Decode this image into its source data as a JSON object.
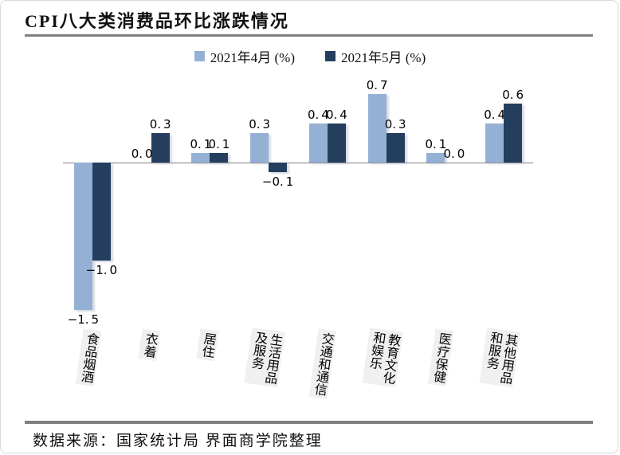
{
  "card": {
    "title": "CPI八大类消费品环比涨跌情况",
    "source_note": "数据来源：国家统计局 界面商学院整理"
  },
  "legend": [
    {
      "label": "2021年4月 (%)",
      "color": "#94B1D5"
    },
    {
      "label": "2021年5月 (%)",
      "color": "#243F5E"
    }
  ],
  "colors": {
    "series_april": "#94B1D5",
    "series_may": "#243F5E",
    "rule_gray": "#808080",
    "category_label_bg": "#F0F0F0"
  },
  "chart_data": {
    "type": "bar",
    "title": "CPI八大类消费品环比涨跌情况",
    "categories": [
      "食品烟酒",
      "衣着",
      "居住",
      "生活用品及服务",
      "交通和通信",
      "教育文化和娱乐",
      "医疗保健",
      "其他用品和服务"
    ],
    "category_label_lines": [
      [
        "食品烟酒"
      ],
      [
        "衣着"
      ],
      [
        "居住"
      ],
      [
        "生活用品",
        "及服务"
      ],
      [
        "交通和通信"
      ],
      [
        "教育文化",
        "和娱乐"
      ],
      [
        "医疗保健"
      ],
      [
        "其他用品",
        "和服务"
      ]
    ],
    "series": [
      {
        "name": "2021年4月 (%)",
        "color": "#94B1D5",
        "values": [
          -1.5,
          0.0,
          0.1,
          0.3,
          0.4,
          0.7,
          0.1,
          0.4
        ]
      },
      {
        "name": "2021年5月 (%)",
        "color": "#243F5E",
        "values": [
          -1.0,
          0.3,
          0.1,
          -0.1,
          0.4,
          0.3,
          0.0,
          0.6
        ]
      }
    ],
    "value_labels": true,
    "ylim": [
      -1.5,
      0.7
    ],
    "grid": false,
    "legend_position": "top",
    "xlabel": "",
    "ylabel": ""
  }
}
